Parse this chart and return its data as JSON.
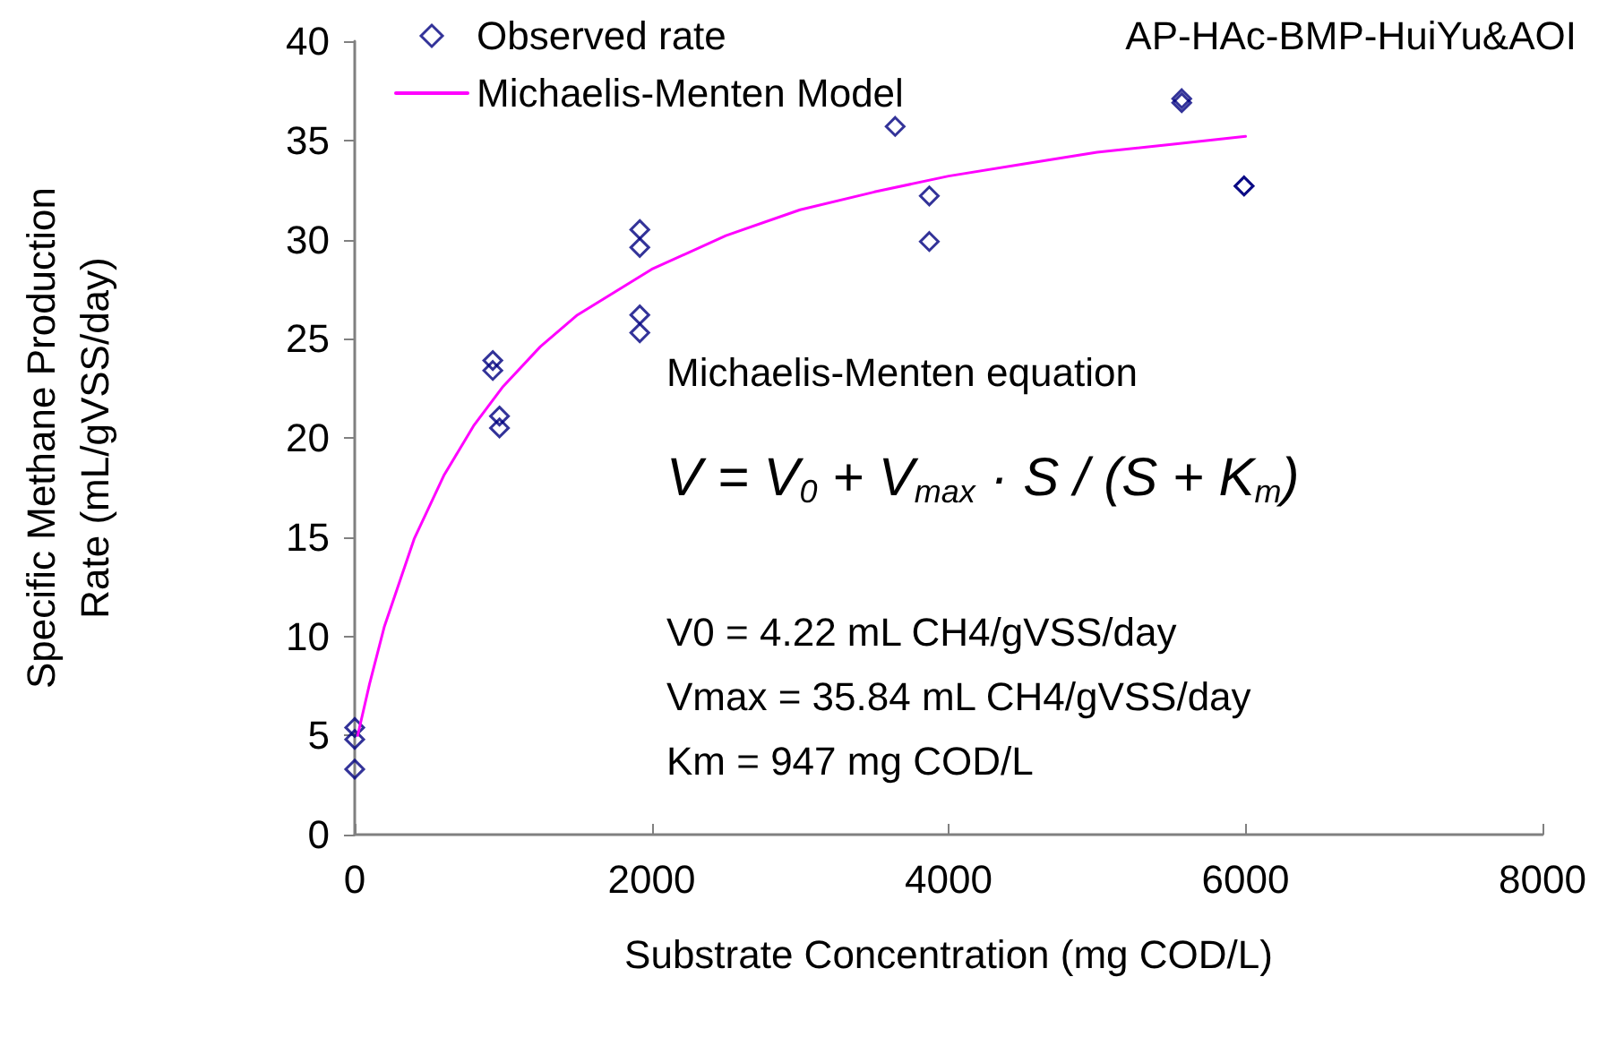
{
  "chart_data": {
    "type": "scatter",
    "title": "AP-HAc-BMP-HuiYu&AOI",
    "xlabel": "Substrate Concentration (mg COD/L)",
    "ylabel": "Specific Methane Production\nRate (mL/gVSS/day)",
    "xlim": [
      0,
      8000
    ],
    "xticks": [
      0,
      2000,
      4000,
      6000,
      8000
    ],
    "ylim": [
      0,
      40
    ],
    "yticks": [
      0,
      5,
      10,
      15,
      20,
      25,
      30,
      35,
      40
    ],
    "grid": false,
    "legend": "top left",
    "series": [
      {
        "name": "Observed rate",
        "marker": "diamond",
        "color": "#000080",
        "x": [
          0,
          0,
          0,
          930,
          930,
          975,
          975,
          1920,
          1920,
          1920,
          1920,
          3640,
          3870,
          3870,
          5570,
          5570,
          5990,
          5990
        ],
        "values": [
          5.4,
          4.8,
          3.3,
          23.9,
          23.4,
          21.1,
          20.5,
          30.5,
          29.6,
          26.2,
          25.3,
          35.7,
          32.2,
          29.9,
          37.1,
          36.9,
          32.7,
          32.7
        ]
      },
      {
        "name": "Michaelis-Menten Model",
        "type": "line",
        "marker": "none",
        "line_style": "solid",
        "color": "#ff00ff",
        "x": [
          20,
          100,
          200,
          400,
          600,
          800,
          1000,
          1250,
          1500,
          2000,
          2500,
          3000,
          3500,
          4000,
          4500,
          5000,
          5500,
          6000
        ],
        "values": [
          5.0,
          7.6,
          10.5,
          14.9,
          18.1,
          20.6,
          22.6,
          24.6,
          26.2,
          28.5,
          30.2,
          31.5,
          32.4,
          33.2,
          33.8,
          34.4,
          34.8,
          35.2
        ]
      }
    ],
    "annotations": [
      "Michaelis-Menten equation",
      "V = V$_{0}$ + V$_{max}$ · S / (S + K$_{m}$)",
      "V0 = 4.22 mL CH4/gVSS/day",
      "Vmax = 35.84 mL CH4/gVSS/day",
      "Km = 947 mg COD/L"
    ]
  }
}
